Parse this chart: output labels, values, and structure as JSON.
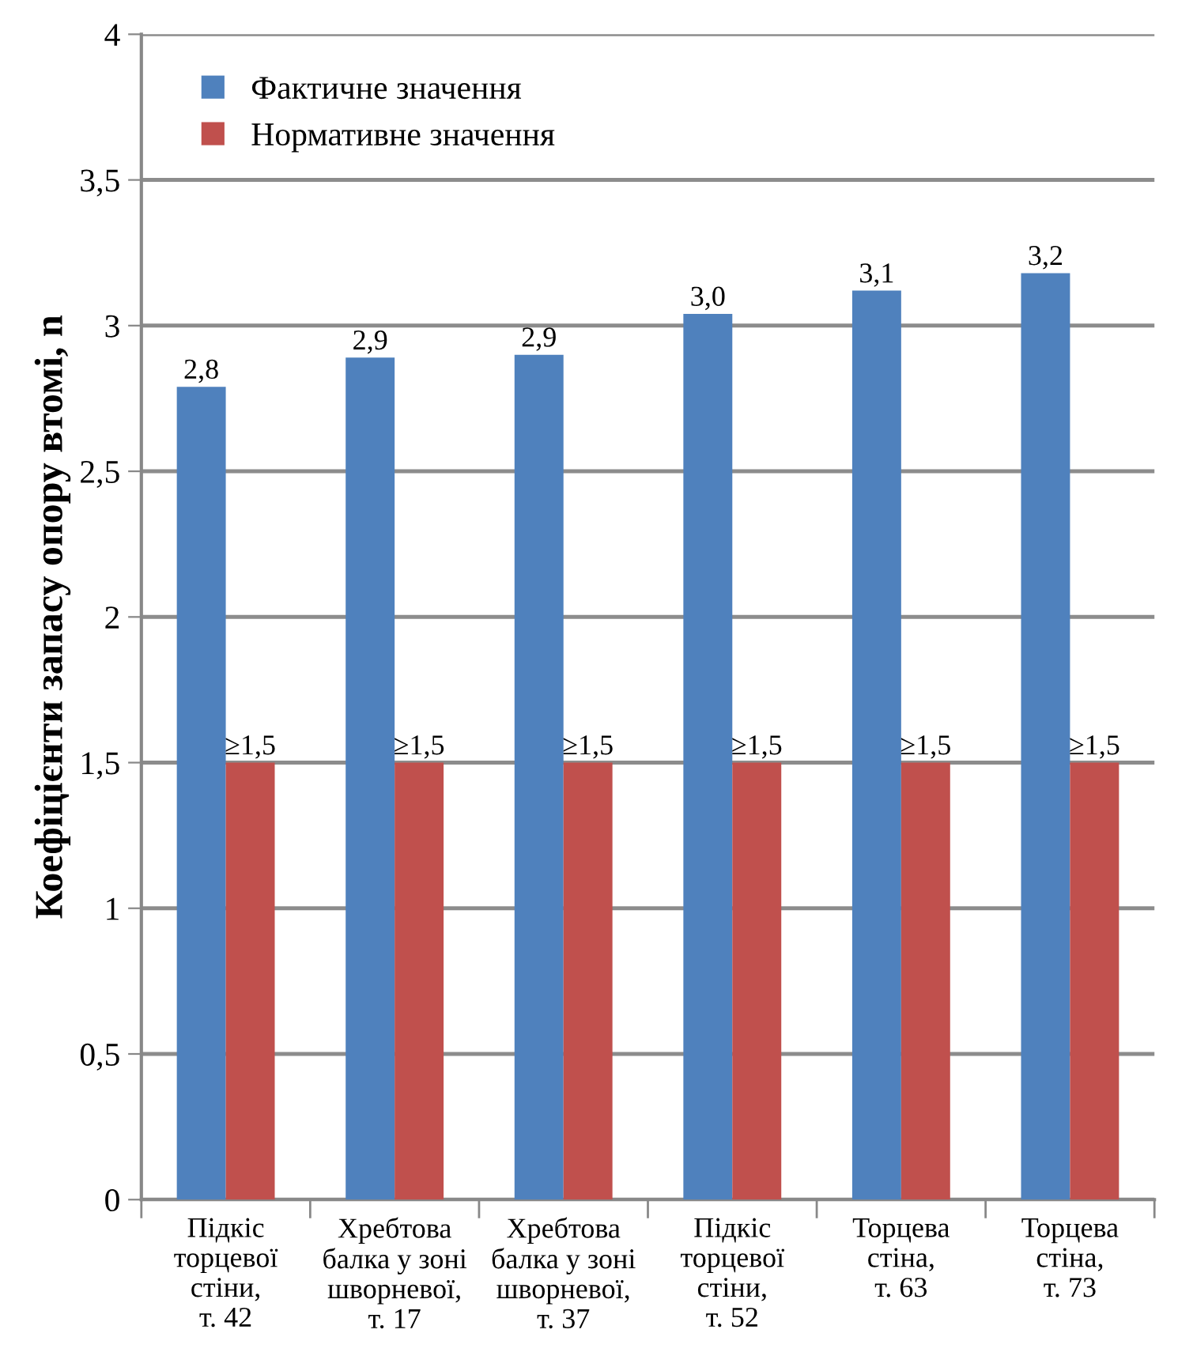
{
  "chart_data": {
    "type": "bar",
    "ylabel": "Коефіцієнти запасу опору втомі, n",
    "categories": [
      "Підкіс\nторцевої\nстіни,\nт. 42",
      "Хребтова\nбалка у зоні\nшворневої,\nт. 17",
      "Хребтова\nбалка у зоні\nшворневої,\nт. 37",
      "Підкіс\nторцевої\nстіни,\nт. 52",
      "Торцева\nстіна,\nт. 63",
      "Торцева\nстіна,\nт. 73"
    ],
    "series": [
      {
        "name": "Фактичне значення",
        "color": "#4f81bd",
        "values": [
          2.79,
          2.89,
          2.9,
          3.04,
          3.12,
          3.18
        ],
        "value_labels": [
          "2,8",
          "2,9",
          "2,9",
          "3,0",
          "3,1",
          "3,2"
        ]
      },
      {
        "name": "Нормативне значення",
        "color": "#c0504d",
        "values": [
          1.5,
          1.5,
          1.5,
          1.5,
          1.5,
          1.5
        ],
        "value_labels": [
          "≥1,5",
          "≥1,5",
          "≥1,5",
          "≥1,5",
          "≥1,5",
          "≥1,5"
        ]
      }
    ],
    "ylim": [
      0,
      4
    ],
    "yticks": [
      0,
      {
        "value": 0.5,
        "label": "0,5"
      },
      1,
      {
        "value": 1.5,
        "label": "1,5"
      },
      2,
      {
        "value": 2.5,
        "label": "2,5"
      },
      3,
      {
        "value": 3.5,
        "label": "3,5"
      },
      4
    ],
    "grid": "y",
    "legend": "top left"
  }
}
